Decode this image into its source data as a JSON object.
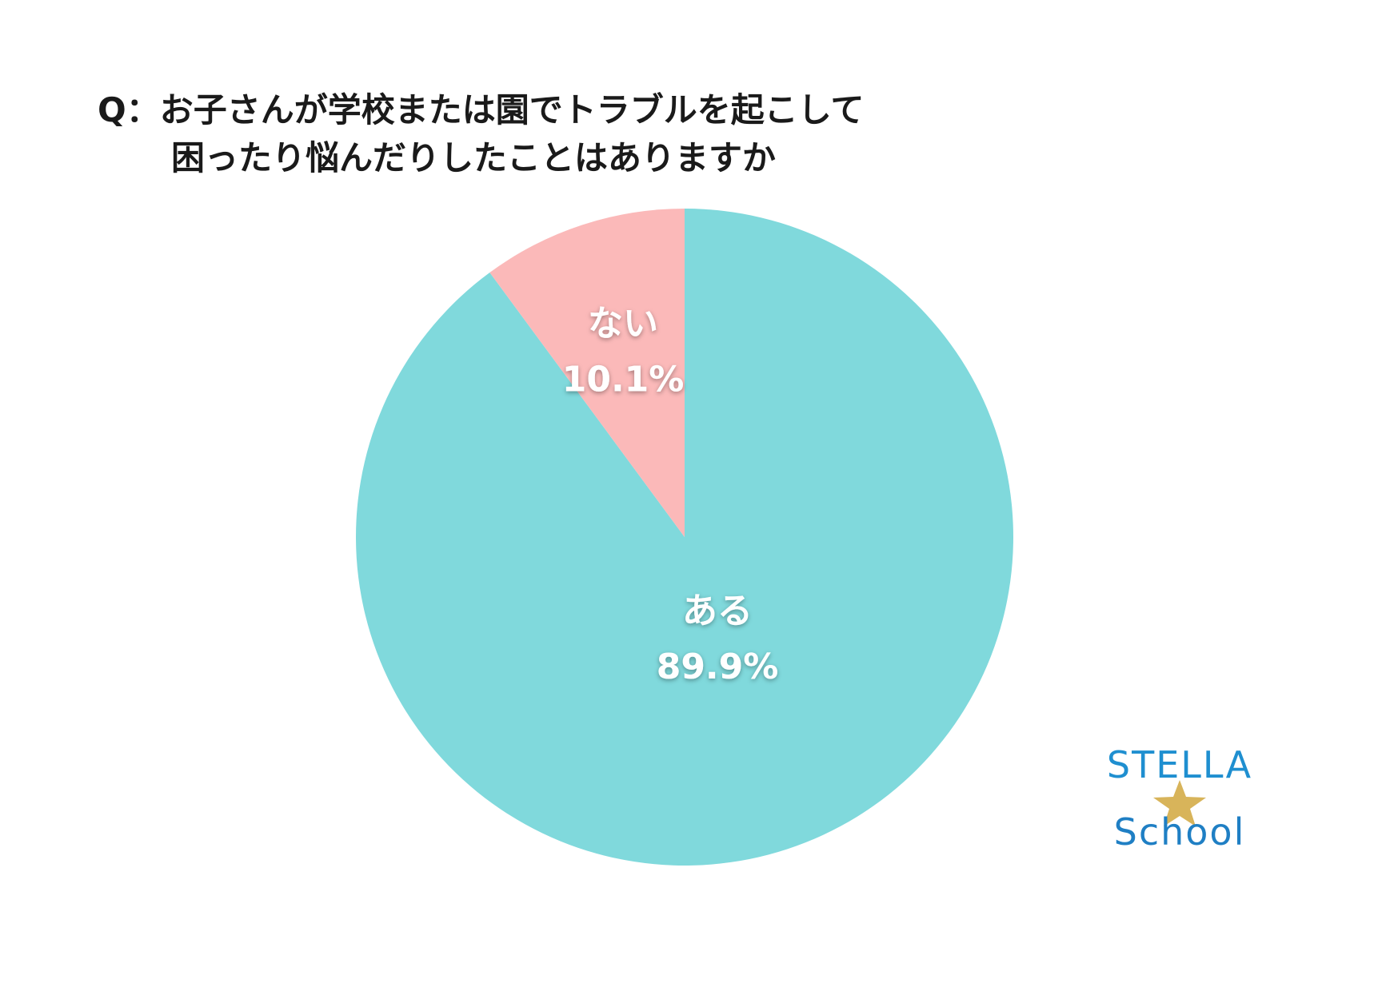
{
  "title": {
    "line1": "Q：お子さんが学校または園でトラブルを起こして",
    "line2": "困ったり悩んだりしたことはありますか"
  },
  "chart_data": {
    "type": "pie",
    "start": "12 o'clock, clockwise",
    "slices": [
      {
        "label": "ある",
        "value": 89.9,
        "value_label": "89.9%",
        "color": "#80d9dc"
      },
      {
        "label": "ない",
        "value": 10.1,
        "value_label": "10.1%",
        "color": "#fbb9b9"
      }
    ]
  },
  "logo": {
    "line1": "STELLA",
    "line2": "School",
    "star_color": "#d8b45a"
  }
}
